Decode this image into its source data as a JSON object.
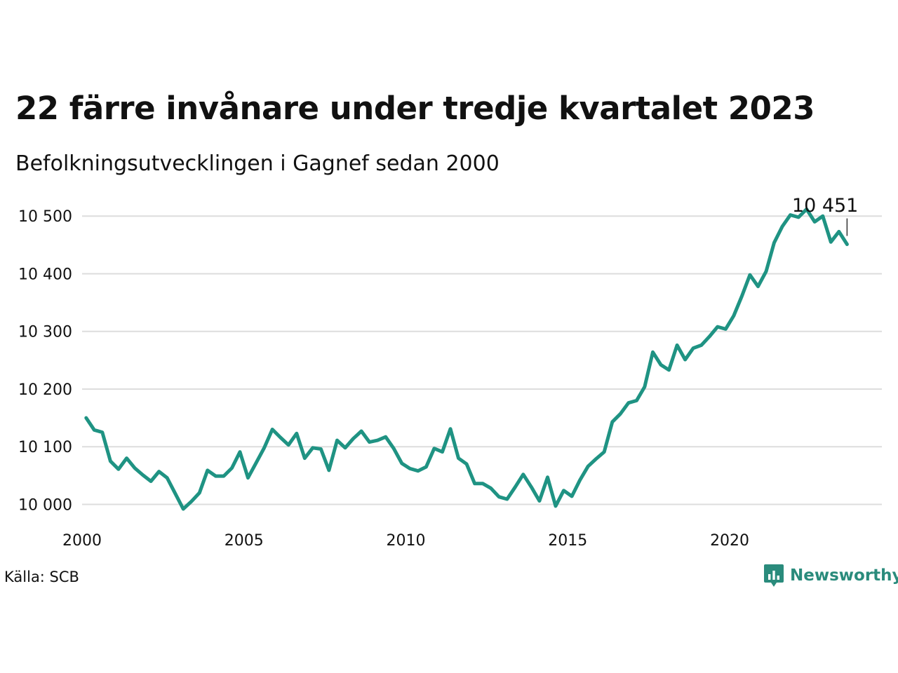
{
  "title": "22 färre invånare under tredje kvartalet 2023",
  "subtitle": "Befolkningsutvecklingen i Gagnef sedan 2000",
  "source": "Källa: SCB",
  "brand": {
    "name": "Newsworthy",
    "icon": "newsworthy-logo-icon",
    "color": "#2a8b7c"
  },
  "colors": {
    "line": "#1f9383",
    "grid": "#dddddd",
    "text": "#111111"
  },
  "chart_data": {
    "type": "line",
    "title": "22 färre invånare under tredje kvartalet 2023",
    "subtitle": "Befolkningsutvecklingen i Gagnef sedan 2000",
    "xlabel": "",
    "ylabel": "",
    "xlim": [
      2000,
      2024.7
    ],
    "ylim": [
      9975,
      10510
    ],
    "x_ticks": [
      2000,
      2005,
      2010,
      2015,
      2020
    ],
    "x_tick_labels": [
      "2000",
      "2005",
      "2010",
      "2015",
      "2020"
    ],
    "y_ticks": [
      10000,
      10100,
      10200,
      10300,
      10400,
      10500
    ],
    "y_tick_labels": [
      "10 000",
      "10 100",
      "10 200",
      "10 300",
      "10 400",
      "10 500"
    ],
    "grid": "horizontal",
    "last_value_label": "10 451",
    "series": [
      {
        "start": "2000-Q1",
        "frequency": "quarterly",
        "values": [
          10150,
          10129,
          10125,
          10075,
          10061,
          10080,
          10063,
          10051,
          10040,
          10057,
          10046,
          10019,
          9992,
          10005,
          10020,
          10059,
          10049,
          10049,
          10063,
          10091,
          10046,
          10072,
          10098,
          10130,
          10116,
          10103,
          10123,
          10080,
          10098,
          10096,
          10059,
          10111,
          10098,
          10114,
          10127,
          10108,
          10111,
          10117,
          10097,
          10071,
          10062,
          10058,
          10065,
          10097,
          10091,
          10131,
          10080,
          10070,
          10036,
          10036,
          10028,
          10013,
          10009,
          10030,
          10052,
          10030,
          10006,
          10047,
          9997,
          10024,
          10014,
          10042,
          10066,
          10079,
          10091,
          10143,
          10157,
          10176,
          10180,
          10204,
          10264,
          10242,
          10233,
          10276,
          10251,
          10271,
          10276,
          10291,
          10308,
          10304,
          10327,
          10361,
          10398,
          10378,
          10404,
          10454,
          10482,
          10502,
          10498,
          10512,
          10490,
          10500,
          10455,
          10473,
          10451
        ]
      }
    ]
  }
}
